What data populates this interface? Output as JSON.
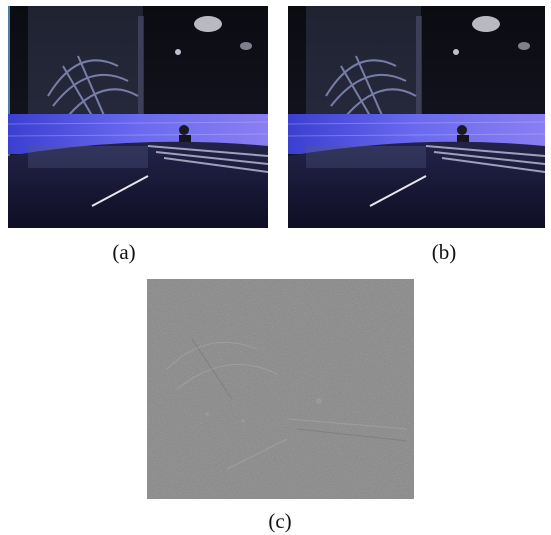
{
  "figure": {
    "panels": [
      {
        "id": "a",
        "caption": "(a)",
        "content": "video-frame",
        "border_color": "#4a7fa8"
      },
      {
        "id": "b",
        "caption": "(b)",
        "content": "video-frame"
      },
      {
        "id": "c",
        "caption": "(c)",
        "content": "difference-image",
        "base_color": "#8c8c8c"
      }
    ]
  }
}
